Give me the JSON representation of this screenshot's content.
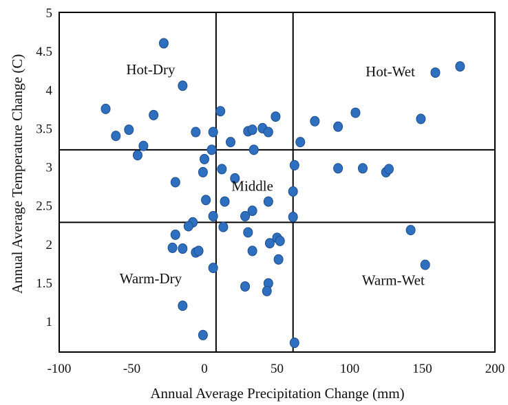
{
  "chart_data": {
    "type": "scatter",
    "xlabel": "Annual Average Precipitation Change (mm)",
    "ylabel": "Annual Average Temperature Change (C)",
    "xlim": [
      -100,
      200
    ],
    "ylim": [
      0.6,
      5
    ],
    "xticks": [
      -100,
      -50,
      0,
      50,
      100,
      150,
      200
    ],
    "yticks": [
      1,
      1.5,
      2,
      2.5,
      3,
      3.5,
      4,
      4.5,
      5
    ],
    "xtick_labels": [
      "-100",
      "-50",
      "0",
      "50",
      "100",
      "150",
      "200"
    ],
    "ytick_labels": [
      "1",
      "1.5",
      "2",
      "2.5",
      "3",
      "3.5",
      "4",
      "4.5",
      "5"
    ],
    "grid": false,
    "marker_color": "#2E6FBF",
    "marker_edge": "#1F4E8C",
    "reference_lines": {
      "vertical_x": [
        8,
        61
      ],
      "horizontal_y": [
        3.22,
        2.28
      ]
    },
    "regions": [
      {
        "label": "Hot-Dry",
        "x": -37,
        "y": 4.2
      },
      {
        "label": "Hot-Wet",
        "x": 128,
        "y": 4.17
      },
      {
        "label": "Middle",
        "x": 33,
        "y": 2.69
      },
      {
        "label": "Warm-Dry",
        "x": -37,
        "y": 1.49
      },
      {
        "label": "Warm-Wet",
        "x": 130,
        "y": 1.47
      }
    ],
    "points": [
      {
        "x": -28,
        "y": 4.6
      },
      {
        "x": -15,
        "y": 4.05
      },
      {
        "x": -68,
        "y": 3.75
      },
      {
        "x": -35,
        "y": 3.67
      },
      {
        "x": -52,
        "y": 3.48
      },
      {
        "x": -61,
        "y": 3.4
      },
      {
        "x": -42,
        "y": 3.27
      },
      {
        "x": -46,
        "y": 3.15
      },
      {
        "x": -6,
        "y": 3.45
      },
      {
        "x": 6,
        "y": 3.45
      },
      {
        "x": 11,
        "y": 3.72
      },
      {
        "x": 18,
        "y": 3.32
      },
      {
        "x": 30,
        "y": 3.46
      },
      {
        "x": 33,
        "y": 3.48
      },
      {
        "x": 40,
        "y": 3.5
      },
      {
        "x": 44,
        "y": 3.45
      },
      {
        "x": 49,
        "y": 3.65
      },
      {
        "x": 34,
        "y": 3.22
      },
      {
        "x": 5,
        "y": 3.22
      },
      {
        "x": 0,
        "y": 3.1
      },
      {
        "x": -1,
        "y": 2.93
      },
      {
        "x": 12,
        "y": 2.97
      },
      {
        "x": 21,
        "y": 2.85
      },
      {
        "x": -20,
        "y": 2.8
      },
      {
        "x": 1,
        "y": 2.57
      },
      {
        "x": 14,
        "y": 2.55
      },
      {
        "x": 33,
        "y": 2.43
      },
      {
        "x": 28,
        "y": 2.36
      },
      {
        "x": 6,
        "y": 2.36
      },
      {
        "x": 13,
        "y": 2.22
      },
      {
        "x": 44,
        "y": 2.55
      },
      {
        "x": 61,
        "y": 2.35
      },
      {
        "x": 61,
        "y": 2.68
      },
      {
        "x": 62,
        "y": 3.02
      },
      {
        "x": 66,
        "y": 3.32
      },
      {
        "x": 76,
        "y": 3.59
      },
      {
        "x": 92,
        "y": 3.52
      },
      {
        "x": 104,
        "y": 3.7
      },
      {
        "x": 92,
        "y": 2.98
      },
      {
        "x": 109,
        "y": 2.98
      },
      {
        "x": 125,
        "y": 2.93
      },
      {
        "x": 127,
        "y": 2.97
      },
      {
        "x": 149,
        "y": 3.62
      },
      {
        "x": 159,
        "y": 4.22
      },
      {
        "x": 176,
        "y": 4.3
      },
      {
        "x": -8,
        "y": 2.28
      },
      {
        "x": -11,
        "y": 2.23
      },
      {
        "x": -20,
        "y": 2.12
      },
      {
        "x": -22,
        "y": 1.95
      },
      {
        "x": -15,
        "y": 1.94
      },
      {
        "x": -6,
        "y": 1.89
      },
      {
        "x": -4,
        "y": 1.91
      },
      {
        "x": 6,
        "y": 1.69
      },
      {
        "x": 30,
        "y": 2.15
      },
      {
        "x": 33,
        "y": 1.91
      },
      {
        "x": 45,
        "y": 2.01
      },
      {
        "x": 50,
        "y": 2.08
      },
      {
        "x": 52,
        "y": 2.04
      },
      {
        "x": 51,
        "y": 1.8
      },
      {
        "x": 28,
        "y": 1.45
      },
      {
        "x": 44,
        "y": 1.49
      },
      {
        "x": 43,
        "y": 1.39
      },
      {
        "x": -15,
        "y": 1.2
      },
      {
        "x": -1,
        "y": 0.82
      },
      {
        "x": 62,
        "y": 0.72
      },
      {
        "x": 142,
        "y": 2.18
      },
      {
        "x": 152,
        "y": 1.73
      }
    ]
  }
}
